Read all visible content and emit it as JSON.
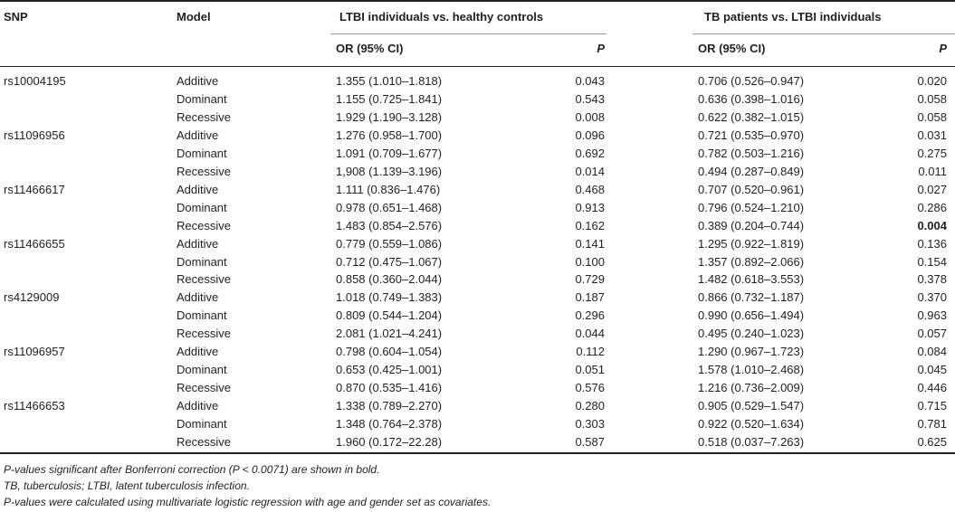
{
  "header": {
    "snp": "SNP",
    "model": "Model",
    "group1": "LTBI individuals vs. healthy controls",
    "group2": "TB patients vs. LTBI individuals",
    "or_label": "OR (95% CI)",
    "p_label": "P"
  },
  "rows": [
    {
      "snp": "rs10004195",
      "model": "Additive",
      "or1": "1.355 (1.010–1.818)",
      "p1": "0.043",
      "or2": "0.706 (0.526–0.947)",
      "p2": "0.020"
    },
    {
      "snp": "",
      "model": "Dominant",
      "or1": "1.155 (0.725–1.841)",
      "p1": "0.543",
      "or2": "0.636 (0.398–1.016)",
      "p2": "0.058"
    },
    {
      "snp": "",
      "model": "Recessive",
      "or1": "1.929 (1.190–3.128)",
      "p1": "0.008",
      "or2": "0.622 (0.382–1.015)",
      "p2": "0.058"
    },
    {
      "snp": "rs11096956",
      "model": "Additive",
      "or1": "1.276 (0.958–1.700)",
      "p1": "0.096",
      "or2": "0.721 (0.535–0.970)",
      "p2": "0.031"
    },
    {
      "snp": "",
      "model": "Dominant",
      "or1": "1.091 (0.709–1.677)",
      "p1": "0.692",
      "or2": "0.782 (0.503–1.216)",
      "p2": "0.275"
    },
    {
      "snp": "",
      "model": "Recessive",
      "or1": "1,908 (1.139–3.196)",
      "p1": "0.014",
      "or2": "0.494 (0.287–0.849)",
      "p2": "0.011"
    },
    {
      "snp": "rs11466617",
      "model": "Additive",
      "or1": "1.111 (0.836–1.476)",
      "p1": "0.468",
      "or2": "0.707 (0.520–0.961)",
      "p2": "0.027"
    },
    {
      "snp": "",
      "model": "Dominant",
      "or1": "0.978 (0.651–1.468)",
      "p1": "0.913",
      "or2": "0.796 (0.524–1.210)",
      "p2": "0.286"
    },
    {
      "snp": "",
      "model": "Recessive",
      "or1": "1.483 (0.854–2.576)",
      "p1": "0.162",
      "or2": "0.389 (0.204–0.744)",
      "p2": "0.004",
      "p2_bold": true
    },
    {
      "snp": "rs11466655",
      "model": "Additive",
      "or1": "0.779 (0.559–1.086)",
      "p1": "0.141",
      "or2": "1.295 (0.922–1.819)",
      "p2": "0.136"
    },
    {
      "snp": "",
      "model": "Dominant",
      "or1": "0.712 (0.475–1.067)",
      "p1": "0.100",
      "or2": "1.357 (0.892–2.066)",
      "p2": "0.154"
    },
    {
      "snp": "",
      "model": "Recessive",
      "or1": "0.858 (0.360–2.044)",
      "p1": "0.729",
      "or2": "1.482 (0.618–3.553)",
      "p2": "0.378"
    },
    {
      "snp": "rs4129009",
      "model": "Additive",
      "or1": "1.018 (0.749–1.383)",
      "p1": "0.187",
      "or2": "0.866 (0.732–1.187)",
      "p2": "0.370"
    },
    {
      "snp": "",
      "model": "Dominant",
      "or1": "0.809 (0.544–1.204)",
      "p1": "0.296",
      "or2": "0.990 (0.656–1.494)",
      "p2": "0.963"
    },
    {
      "snp": "",
      "model": "Recessive",
      "or1": "2.081 (1.021–4.241)",
      "p1": "0.044",
      "or2": "0.495 (0.240–1.023)",
      "p2": "0.057"
    },
    {
      "snp": "rs11096957",
      "model": "Additive",
      "or1": "0.798 (0.604–1.054)",
      "p1": "0.112",
      "or2": "1.290 (0.967–1.723)",
      "p2": "0.084"
    },
    {
      "snp": "",
      "model": "Dominant",
      "or1": "0.653 (0.425–1.001)",
      "p1": "0.051",
      "or2": "1.578 (1.010–2.468)",
      "p2": "0.045"
    },
    {
      "snp": "",
      "model": "Recessive",
      "or1": "0.870 (0.535–1.416)",
      "p1": "0.576",
      "or2": "1.216 (0.736–2.009)",
      "p2": "0.446"
    },
    {
      "snp": "rs11466653",
      "model": "Additive",
      "or1": "1.338 (0.789–2.270)",
      "p1": "0.280",
      "or2": "0.905 (0.529–1.547)",
      "p2": "0.715"
    },
    {
      "snp": "",
      "model": "Dominant",
      "or1": "1.348 (0.764–2.378)",
      "p1": "0.303",
      "or2": "0.922 (0.520–1.634)",
      "p2": "0.781"
    },
    {
      "snp": "",
      "model": "Recessive",
      "or1": "1.960 (0.172–22.28)",
      "p1": "0.587",
      "or2": "0.518 (0.037–7.263)",
      "p2": "0.625"
    }
  ],
  "footnotes": [
    "P-values significant after Bonferroni correction (P < 0.0071) are shown in bold.",
    "TB, tuberculosis; LTBI, latent tuberculosis infection.",
    "P-values were calculated using multivariate logistic regression with age and gender set as covariates."
  ]
}
